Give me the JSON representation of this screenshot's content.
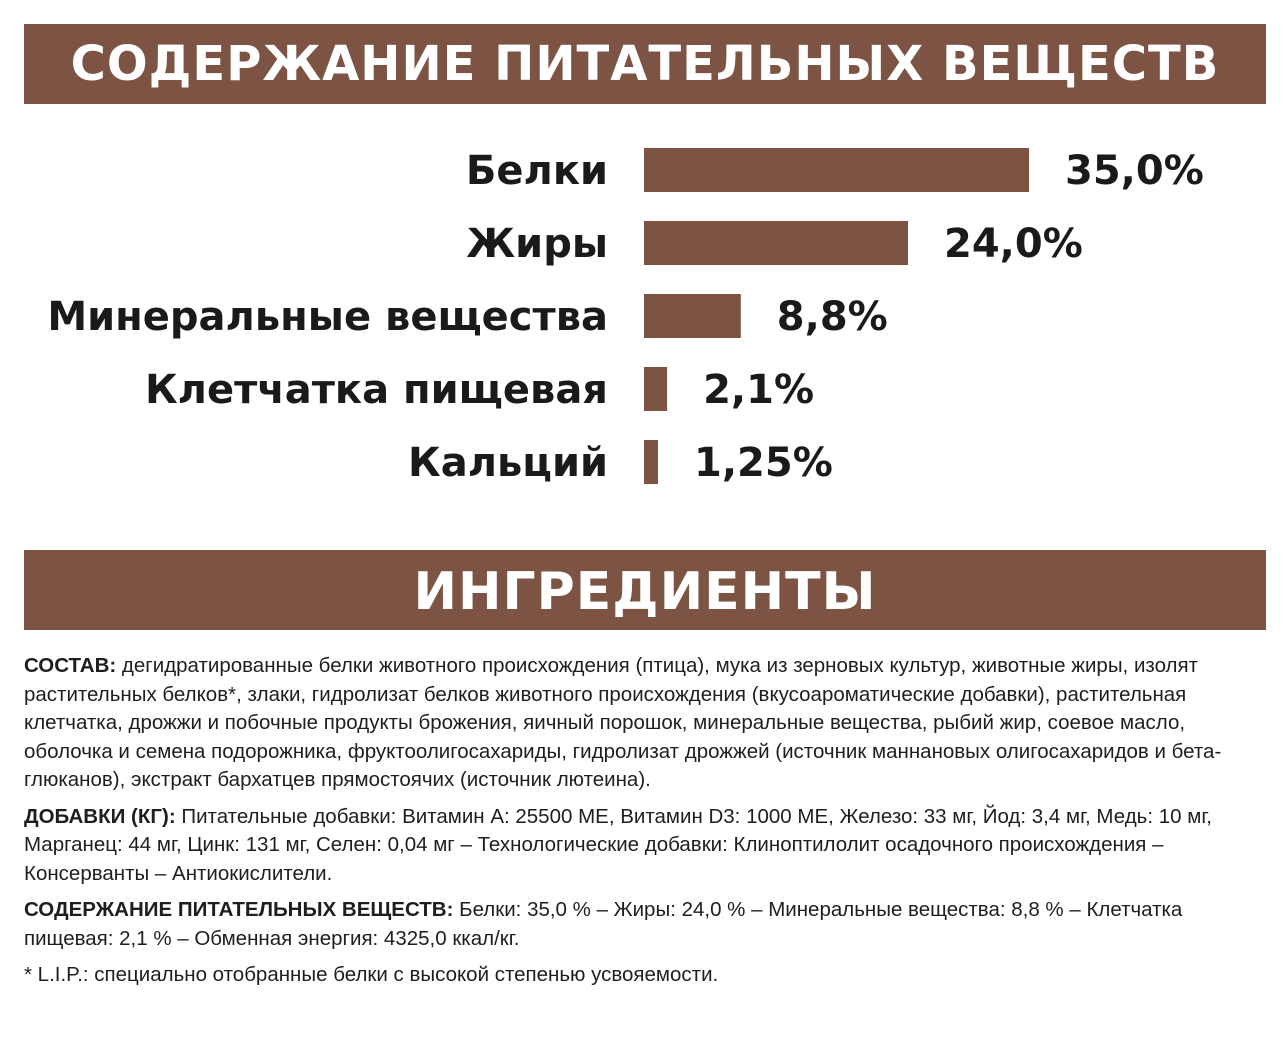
{
  "header": {
    "nutrients_title": "СОДЕРЖАНИЕ ПИТАТЕЛЬНЫХ ВЕЩЕСТВ",
    "ingredients_title": "ИНГРЕДИЕНТЫ"
  },
  "colors": {
    "accent": "#7d5444",
    "text": "#1a1a1a",
    "background": "#ffffff"
  },
  "chart_data": {
    "type": "bar",
    "orientation": "horizontal",
    "title": "СОДЕРЖАНИЕ ПИТАТЕЛЬНЫХ ВЕЩЕСТВ",
    "categories": [
      "Белки",
      "Жиры",
      "Минеральные вещества",
      "Клетчатка пищевая",
      "Кальций"
    ],
    "values": [
      35.0,
      24.0,
      8.8,
      2.1,
      1.25
    ],
    "value_labels": [
      "35,0%",
      "24,0%",
      "8,8%",
      "2,1%",
      "1,25%"
    ],
    "xlim": [
      0,
      35
    ],
    "grid": false,
    "legend": "none"
  },
  "ingredients": {
    "composition_label": "СОСТАВ:",
    "composition_text": " дегидратированные белки животного происхождения (птица), мука из зерновых культур, животные жиры, изолят растительных белков*, злаки, гидролизат белков животного происхождения (вкусоароматические добавки), растительная клетчатка, дрожжи и побочные продукты брожения, яичный порошок, минеральные вещества, рыбий жир, соевое масло, оболочка и семена подорожника, фруктоолигосахариды, гидролизат дрожжей (источник маннановых олигосахаридов и бета-глюканов), экстракт бархатцев прямостоячих (источник лютеина).",
    "additives_label": "ДОБАВКИ (КГ):",
    "additives_text": " Питательные добавки: Витамин A: 25500 ME, Витамин D3: 1000 ME, Железо: 33 мг, Йод: 3,4 мг, Медь: 10 мг, Марганец: 44 мг, Цинк: 131 мг, Селен: 0,04 мг – Технологические добавки: Клиноптилолит осадочного происхождения – Консерванты – Антиокислители.",
    "nutrients_label": "СОДЕРЖАНИЕ ПИТАТЕЛЬНЫХ ВЕЩЕСТВ:",
    "nutrients_text": " Белки: 35,0 % – Жиры: 24,0 % – Минеральные вещества: 8,8 % – Клетчатка пищевая: 2,1 % – Обменная энергия: 4325,0 ккал/кг.",
    "footnote": "* L.I.P.: специально отобранные белки с высокой степенью усвояемости."
  }
}
